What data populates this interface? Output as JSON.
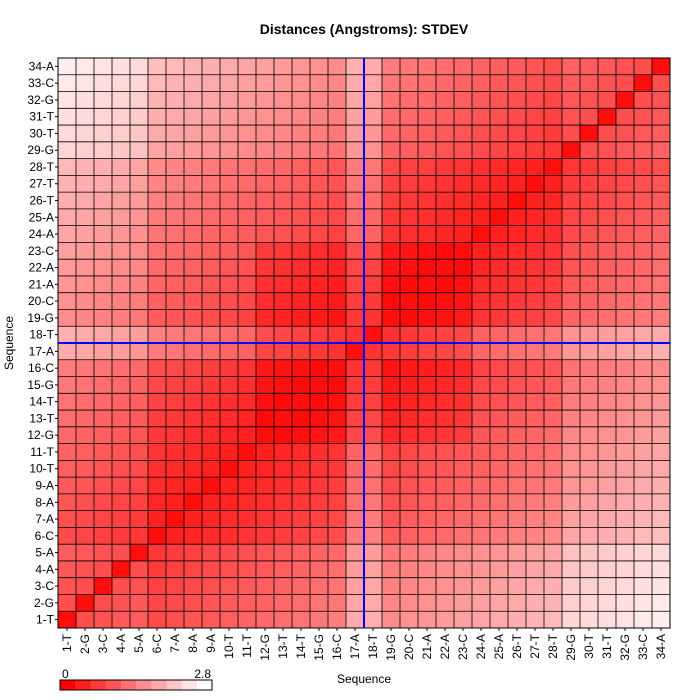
{
  "chart_data": {
    "type": "heatmap",
    "title": "Distances (Angstroms):  STDEV",
    "xlabel": "Sequence",
    "ylabel": "Sequence",
    "labels": [
      "1-T",
      "2-G",
      "3-C",
      "4-A",
      "5-A",
      "6-C",
      "7-A",
      "8-A",
      "9-A",
      "10-T",
      "11-T",
      "12-G",
      "13-T",
      "14-T",
      "15-G",
      "16-C",
      "17-A",
      "18-T",
      "19-G",
      "20-C",
      "21-A",
      "22-A",
      "23-C",
      "24-A",
      "25-A",
      "26-T",
      "27-T",
      "28-T",
      "29-G",
      "30-T",
      "31-T",
      "32-G",
      "33-C",
      "34-A"
    ],
    "value_range": [
      0,
      2.8
    ],
    "colorbar": {
      "min_label": "0",
      "max_label": "2.8",
      "low_color": "#ff0000",
      "high_color": "#ffffff"
    },
    "grid": true,
    "crosshair": {
      "x_between": [
        "17-A",
        "18-T"
      ],
      "y_between": [
        "17-A",
        "18-T"
      ],
      "color": "#0000ff"
    },
    "generation_rule": "Symmetric matrix; value grows with |i-j|; rows/cols 1-5 and 29-34 lighter; 12-23 mutual block darker; 17-A/18-T crosshair light",
    "diag_value": 0.3,
    "slope": 0.055,
    "max_value": 2.8
  }
}
